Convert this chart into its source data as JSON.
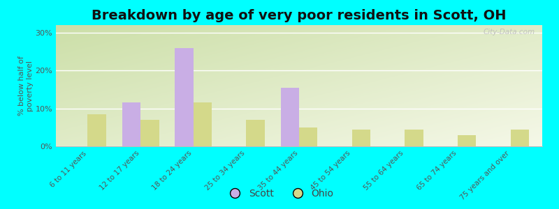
{
  "title": "Breakdown by age of very poor residents in Scott, OH",
  "ylabel": "% below half of\npoverty level",
  "categories": [
    "6 to 11 years",
    "12 to 17 years",
    "18 to 24 years",
    "25 to 34 years",
    "35 to 44 years",
    "45 to 54 years",
    "55 to 64 years",
    "65 to 74 years",
    "75 years and over"
  ],
  "scott_values": [
    0,
    11.5,
    26.0,
    0,
    15.5,
    0,
    0,
    0,
    0
  ],
  "ohio_values": [
    8.5,
    7.0,
    11.5,
    7.0,
    5.0,
    4.5,
    4.5,
    3.0,
    4.5
  ],
  "scott_color": "#c9aee5",
  "ohio_color": "#d4d98a",
  "outer_bg": "#00ffff",
  "ylim": [
    0,
    32
  ],
  "yticks": [
    0,
    10,
    20,
    30
  ],
  "ytick_labels": [
    "0%",
    "10%",
    "20%",
    "30%"
  ],
  "title_fontsize": 14,
  "bar_width": 0.35,
  "legend_scott": "Scott",
  "legend_ohio": "Ohio",
  "bg_color_left": "#ccdfa8",
  "bg_color_right": "#f0f4e0",
  "bg_color_top": "#ddeec0",
  "bg_color_bottom": "#f5f8e8",
  "grid_color": "#e8eecc",
  "watermark": "City-Data.com"
}
